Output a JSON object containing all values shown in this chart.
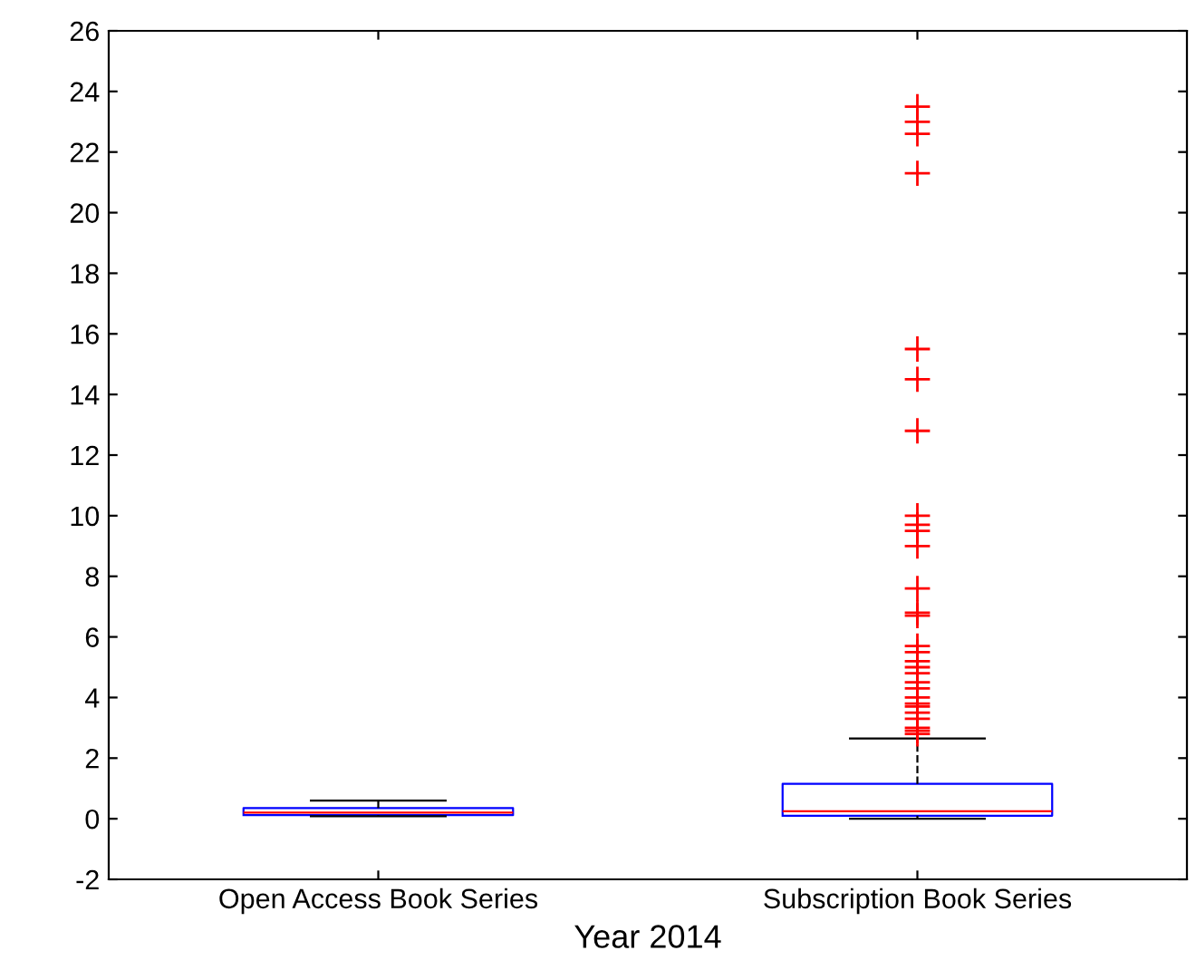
{
  "chart_data": {
    "type": "box",
    "xlabel": "Year 2014",
    "categories": [
      "Open Access Book Series",
      "Subscription Book Series"
    ],
    "boxes": [
      {
        "low": 0.08,
        "q1": 0.12,
        "median": 0.2,
        "q3": 0.35,
        "high": 0.6
      },
      {
        "low": 0,
        "q1": 0.1,
        "median": 0.25,
        "q3": 1.15,
        "high": 2.65,
        "outliers": [
          23.5,
          23.0,
          22.6,
          21.3,
          15.5,
          14.5,
          12.8,
          10.0,
          9.7,
          9.5,
          9.0,
          7.6,
          6.8,
          6.7,
          5.7,
          5.5,
          5.2,
          5.0,
          4.8,
          4.5,
          4.3,
          4.0,
          3.8,
          3.7,
          3.5,
          3.3,
          3.0,
          2.9,
          2.8
        ]
      }
    ],
    "color": "#0000ff",
    "marker": "cross",
    "ylim": [
      -2,
      26
    ],
    "yticks": [
      -2,
      0,
      2,
      4,
      6,
      8,
      10,
      12,
      14,
      16,
      18,
      20,
      22,
      24,
      26
    ],
    "grid": false
  }
}
